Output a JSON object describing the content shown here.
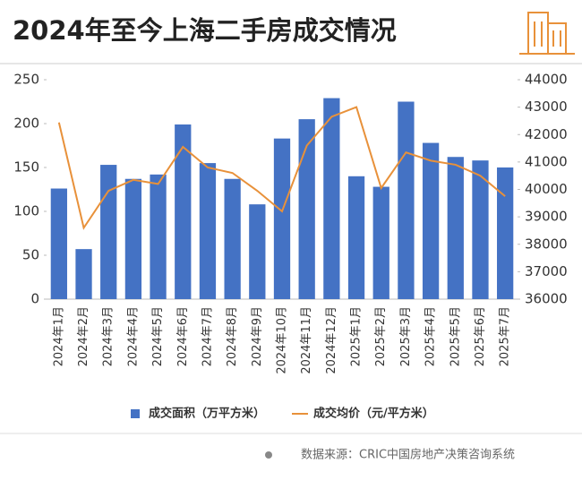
{
  "chart_data": {
    "type": "bar_line",
    "title": "2024年至今上海二手房成交情况",
    "source": "数据来源：CRIC中国房地产决策咨询系统",
    "categories": [
      "2024年1月",
      "2024年2月",
      "2024年3月",
      "2024年4月",
      "2024年5月",
      "2024年6月",
      "2024年7月",
      "2024年8月",
      "2024年9月",
      "2024年10月",
      "2024年11月",
      "2024年12月",
      "2025年1月",
      "2025年2月",
      "2025年3月",
      "2025年4月",
      "2025年5月",
      "2025年6月",
      "2025年7月"
    ],
    "series": [
      {
        "name": "成交面积（万平方米）",
        "color": "#4472c4",
        "kind": "bar",
        "axis": "y",
        "values": [
          126,
          57,
          153,
          137,
          142,
          199,
          155,
          137,
          108,
          183,
          205,
          229,
          140,
          128,
          225,
          178,
          162,
          158,
          150
        ]
      },
      {
        "name": "成交均价（元/平方米）",
        "color": "#e8913a",
        "kind": "line",
        "axis": "y2",
        "values": [
          42440,
          38600,
          39950,
          40350,
          40200,
          41550,
          40800,
          40600,
          39950,
          39200,
          41600,
          42650,
          43000,
          40050,
          41350,
          41050,
          40900,
          40500,
          39750
        ]
      }
    ],
    "ylim": [
      0,
      250
    ],
    "yticks": [
      0,
      50,
      100,
      150,
      200,
      250
    ],
    "y2lim": [
      36000,
      44000
    ],
    "y2ticks": [
      36000,
      37000,
      38000,
      39000,
      40000,
      41000,
      42000,
      43000,
      44000
    ],
    "legend": "bottom"
  }
}
